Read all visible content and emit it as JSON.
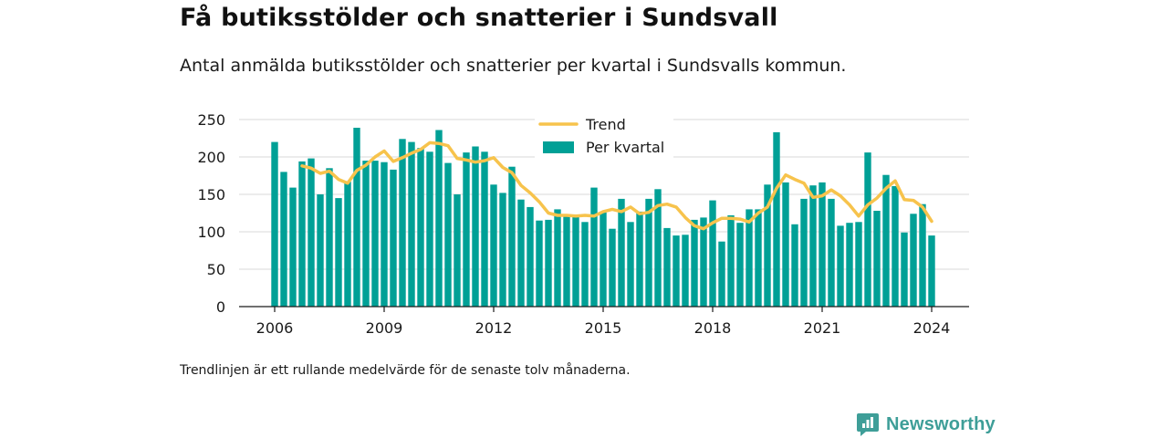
{
  "title": "Få butiksstölder och snatterier i Sundsvall",
  "subtitle": "Antal anmälda butiksstölder och snatterier per kvartal i Sundsvalls kommun.",
  "footnote": "Trendlinjen är ett rullande medelvärde för de senaste tolv månaderna.",
  "brand": {
    "name": "Newsworthy",
    "icon": "newsworthy-logo-icon"
  },
  "colors": {
    "bars": "#00a096",
    "trend": "#f7c34c",
    "grid": "#d9d9d9",
    "axis": "#1a1a1a"
  },
  "chart_data": {
    "type": "bar",
    "title": "",
    "xlabel": "",
    "ylabel": "",
    "ylim": [
      0,
      250
    ],
    "yticks": [
      0,
      50,
      100,
      150,
      200,
      250
    ],
    "xticks": [
      "2006",
      "2009",
      "2012",
      "2015",
      "2018",
      "2021",
      "2024"
    ],
    "grid": true,
    "legend_position": "top-center",
    "series": [
      {
        "name": "Per kvartal",
        "type": "bar",
        "x": [
          "2006-Q1",
          "2006-Q2",
          "2006-Q3",
          "2006-Q4",
          "2007-Q1",
          "2007-Q2",
          "2007-Q3",
          "2007-Q4",
          "2008-Q1",
          "2008-Q2",
          "2008-Q3",
          "2008-Q4",
          "2009-Q1",
          "2009-Q2",
          "2009-Q3",
          "2009-Q4",
          "2010-Q1",
          "2010-Q2",
          "2010-Q3",
          "2010-Q4",
          "2011-Q1",
          "2011-Q2",
          "2011-Q3",
          "2011-Q4",
          "2012-Q1",
          "2012-Q2",
          "2012-Q3",
          "2012-Q4",
          "2013-Q1",
          "2013-Q2",
          "2013-Q3",
          "2013-Q4",
          "2014-Q1",
          "2014-Q2",
          "2014-Q3",
          "2014-Q4",
          "2015-Q1",
          "2015-Q2",
          "2015-Q3",
          "2015-Q4",
          "2016-Q1",
          "2016-Q2",
          "2016-Q3",
          "2016-Q4",
          "2017-Q1",
          "2017-Q2",
          "2017-Q3",
          "2017-Q4",
          "2018-Q1",
          "2018-Q2",
          "2018-Q3",
          "2018-Q4",
          "2019-Q1",
          "2019-Q2",
          "2019-Q3",
          "2019-Q4",
          "2020-Q1",
          "2020-Q2",
          "2020-Q3",
          "2020-Q4",
          "2021-Q1",
          "2021-Q2",
          "2021-Q3",
          "2021-Q4",
          "2022-Q1",
          "2022-Q2",
          "2022-Q3",
          "2022-Q4",
          "2023-Q1",
          "2023-Q2",
          "2023-Q3",
          "2023-Q4",
          "2024-Q1"
        ],
        "values": [
          220,
          180,
          159,
          194,
          198,
          150,
          185,
          145,
          167,
          239,
          195,
          195,
          193,
          183,
          224,
          220,
          212,
          207,
          236,
          192,
          150,
          206,
          214,
          207,
          163,
          152,
          187,
          143,
          133,
          115,
          116,
          130,
          123,
          122,
          113,
          159,
          126,
          104,
          144,
          113,
          127,
          144,
          157,
          105,
          95,
          96,
          116,
          119,
          142,
          87,
          122,
          112,
          130,
          130,
          163,
          233,
          166,
          110,
          144,
          162,
          166,
          144,
          108,
          112,
          113,
          206,
          128,
          176,
          161,
          99,
          124,
          137,
          95
        ]
      },
      {
        "name": "Trend",
        "type": "line",
        "x": [
          "2006-Q4",
          "2007-Q1",
          "2007-Q2",
          "2007-Q3",
          "2007-Q4",
          "2008-Q1",
          "2008-Q2",
          "2008-Q3",
          "2008-Q4",
          "2009-Q1",
          "2009-Q2",
          "2009-Q3",
          "2009-Q4",
          "2010-Q1",
          "2010-Q2",
          "2010-Q3",
          "2010-Q4",
          "2011-Q1",
          "2011-Q2",
          "2011-Q3",
          "2011-Q4",
          "2012-Q1",
          "2012-Q2",
          "2012-Q3",
          "2012-Q4",
          "2013-Q1",
          "2013-Q2",
          "2013-Q3",
          "2013-Q4",
          "2014-Q1",
          "2014-Q2",
          "2014-Q3",
          "2014-Q4",
          "2015-Q1",
          "2015-Q2",
          "2015-Q3",
          "2015-Q4",
          "2016-Q1",
          "2016-Q2",
          "2016-Q3",
          "2016-Q4",
          "2017-Q1",
          "2017-Q2",
          "2017-Q3",
          "2017-Q4",
          "2018-Q1",
          "2018-Q2",
          "2018-Q3",
          "2018-Q4",
          "2019-Q1",
          "2019-Q2",
          "2019-Q3",
          "2019-Q4",
          "2020-Q1",
          "2020-Q2",
          "2020-Q3",
          "2020-Q4",
          "2021-Q1",
          "2021-Q2",
          "2021-Q3",
          "2021-Q4",
          "2022-Q1",
          "2022-Q2",
          "2022-Q3",
          "2022-Q4",
          "2023-Q1",
          "2023-Q2",
          "2023-Q3",
          "2023-Q4",
          "2024-Q1"
        ],
        "values": [
          188,
          185,
          178,
          181,
          170,
          165,
          182,
          189,
          200,
          208,
          194,
          199,
          205,
          210,
          219,
          218,
          215,
          198,
          196,
          193,
          195,
          199,
          186,
          179,
          162,
          152,
          140,
          125,
          122,
          122,
          121,
          122,
          121,
          127,
          130,
          127,
          133,
          124,
          126,
          135,
          137,
          133,
          119,
          108,
          104,
          112,
          118,
          118,
          117,
          113,
          125,
          133,
          158,
          176,
          170,
          165,
          146,
          148,
          156,
          148,
          136,
          121,
          136,
          145,
          158,
          168,
          143,
          142,
          133,
          114
        ]
      }
    ]
  }
}
